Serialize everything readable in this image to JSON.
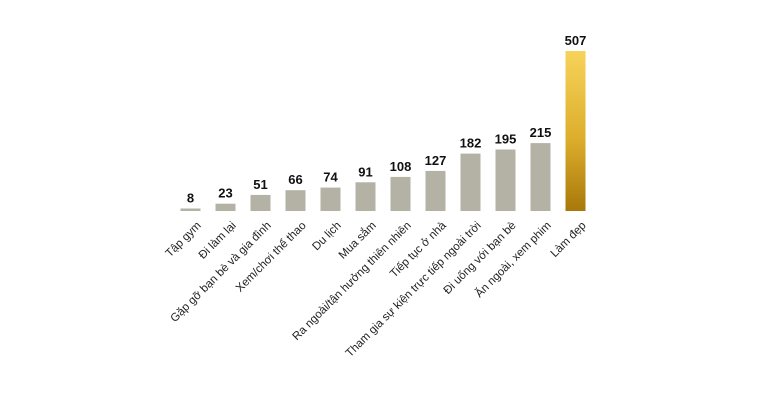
{
  "chart_data": {
    "type": "bar",
    "categories": [
      "Tập gym",
      "Đi làm lại",
      "Gặp gỡ bạn bè và gia đình",
      "Xem/chơi thể thao",
      "Du lịch",
      "Mua sắm",
      "Ra ngoài/tận hưởng thiên nhiên",
      "Tiếp tục ở nhà",
      "Tham gia sự kiện trực tiếp ngoài trời",
      "Đi uống với bạn bè",
      "Ăn ngoài, xem phim",
      "Làm đẹp"
    ],
    "values": [
      8,
      23,
      51,
      66,
      74,
      91,
      108,
      127,
      182,
      195,
      215,
      507
    ],
    "value_labels": [
      "8",
      "23",
      "51",
      "66",
      "74",
      "91",
      "108",
      "127",
      "182",
      "195",
      "215",
      "507"
    ],
    "ylim": [
      0,
      507
    ],
    "grid": false,
    "legend": "none",
    "colors": {
      "bar": "#b3b2a5",
      "highlight_top": "#f7d35a",
      "highlight_mid": "#dcae2c",
      "highlight_bottom": "#a8780a",
      "value_text": "#111111",
      "category_text": "#222222"
    },
    "highlight_index": 11
  }
}
